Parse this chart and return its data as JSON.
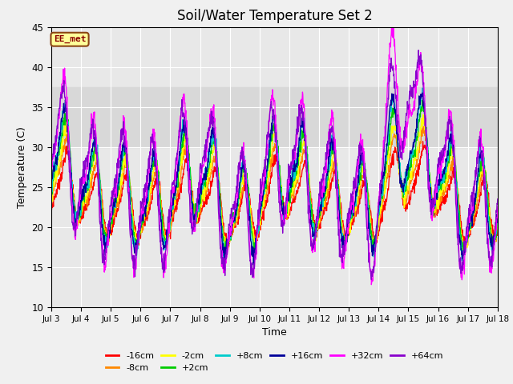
{
  "title": "Soil/Water Temperature Set 2",
  "xlabel": "Time",
  "ylabel": "Temperature (C)",
  "ylim": [
    10,
    45
  ],
  "x_tick_labels": [
    "Jul 3",
    "Jul 4",
    "Jul 5",
    "Jul 6",
    "Jul 7",
    "Jul 8",
    "Jul 9",
    "Jul 10",
    "Jul 11",
    "Jul 12",
    "Jul 13",
    "Jul 14",
    "Jul 15",
    "Jul 16",
    "Jul 17",
    "Jul 18"
  ],
  "shaded_band": [
    30,
    37.5
  ],
  "shaded_color": "#d8d8d8",
  "annotation_text": "EE_met",
  "annotation_bg": "#ffff99",
  "annotation_border": "#8b4513",
  "series_colors": {
    "-16cm": "#ff0000",
    "-8cm": "#ff8800",
    "-2cm": "#ffff00",
    "+2cm": "#00cc00",
    "+8cm": "#00cccc",
    "+16cm": "#000099",
    "+32cm": "#ff00ff",
    "+64cm": "#8800cc"
  },
  "legend_order": [
    "-16cm",
    "-8cm",
    "-2cm",
    "+2cm",
    "+8cm",
    "+16cm",
    "+32cm",
    "+64cm"
  ],
  "plot_bg": "#e8e8e8",
  "grid_color": "#ffffff",
  "title_fontsize": 12,
  "fig_bg": "#f0f0f0"
}
